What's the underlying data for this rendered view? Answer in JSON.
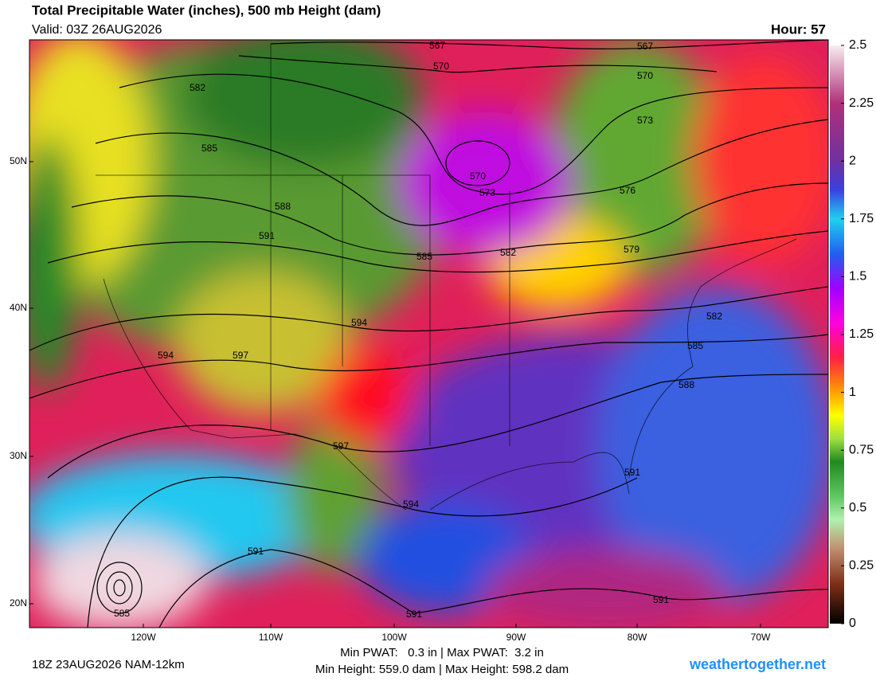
{
  "header": {
    "title": "Total Precipitable Water (inches), 500 mb Height (dam)",
    "valid": "Valid: 03Z 26AUG2026",
    "hour": "Hour: 57"
  },
  "colorbar": {
    "lim": [
      0,
      2.5
    ],
    "ticks": [
      2.5,
      2.25,
      2,
      1.75,
      1.5,
      1.25,
      1,
      0.75,
      0.5,
      0.25,
      0
    ]
  },
  "lat_labels": [
    "50N",
    "40N",
    "30N",
    "20N"
  ],
  "lon_labels": [
    "120W",
    "110W",
    "100W",
    "90W",
    "80W",
    "70W"
  ],
  "contour_labels": [
    567,
    570,
    567,
    570,
    573,
    582,
    585,
    588,
    591,
    576,
    570,
    573,
    585,
    582,
    579,
    594,
    594,
    597,
    582,
    585,
    588,
    597,
    591,
    594,
    591,
    585,
    591,
    591
  ],
  "footer": {
    "run": "18Z 23AUG2026 NAM-12km",
    "pwat": "Min PWAT:   0.3 in | Max PWAT:  3.2 in",
    "height": "Min Height: 559.0 dam | Max Height: 598.2 dam",
    "site": "weathertogether.net"
  }
}
